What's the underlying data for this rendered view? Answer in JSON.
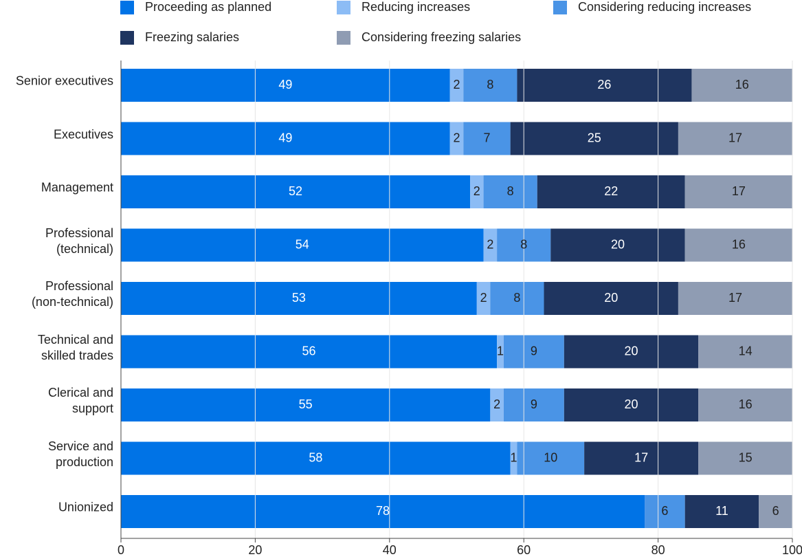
{
  "chart_data": {
    "type": "stacked-barh",
    "categories": [
      "Senior executives",
      "Executives",
      "Management",
      "Professional\n(technical)",
      "Professional\n(non-technical)",
      "Technical and\nskilled trades",
      "Clerical and\nsupport",
      "Service and\nproduction",
      "Unionized"
    ],
    "series": [
      {
        "name": "Proceeding as planned",
        "color": "#0073e6",
        "values": [
          49,
          49,
          52,
          54,
          53,
          56,
          55,
          58,
          78
        ]
      },
      {
        "name": "Reducing increases",
        "color": "#8cbcf5",
        "values": [
          2,
          2,
          2,
          2,
          2,
          1,
          2,
          1,
          null
        ]
      },
      {
        "name": "Considering reducing increases",
        "color": "#4a94e6",
        "values": [
          8,
          7,
          8,
          8,
          8,
          9,
          9,
          10,
          6
        ]
      },
      {
        "name": "Freezing salaries",
        "color": "#1f3560",
        "values": [
          26,
          25,
          22,
          20,
          20,
          20,
          20,
          17,
          11
        ]
      },
      {
        "name": "Considering freezing salaries",
        "color": "#8f9cb3",
        "values": [
          16,
          17,
          17,
          16,
          17,
          14,
          16,
          15,
          6
        ]
      }
    ],
    "xlim": [
      0,
      100
    ],
    "xticks": [
      0,
      20,
      40,
      60,
      80,
      100
    ],
    "grid": true,
    "legend": "top"
  }
}
